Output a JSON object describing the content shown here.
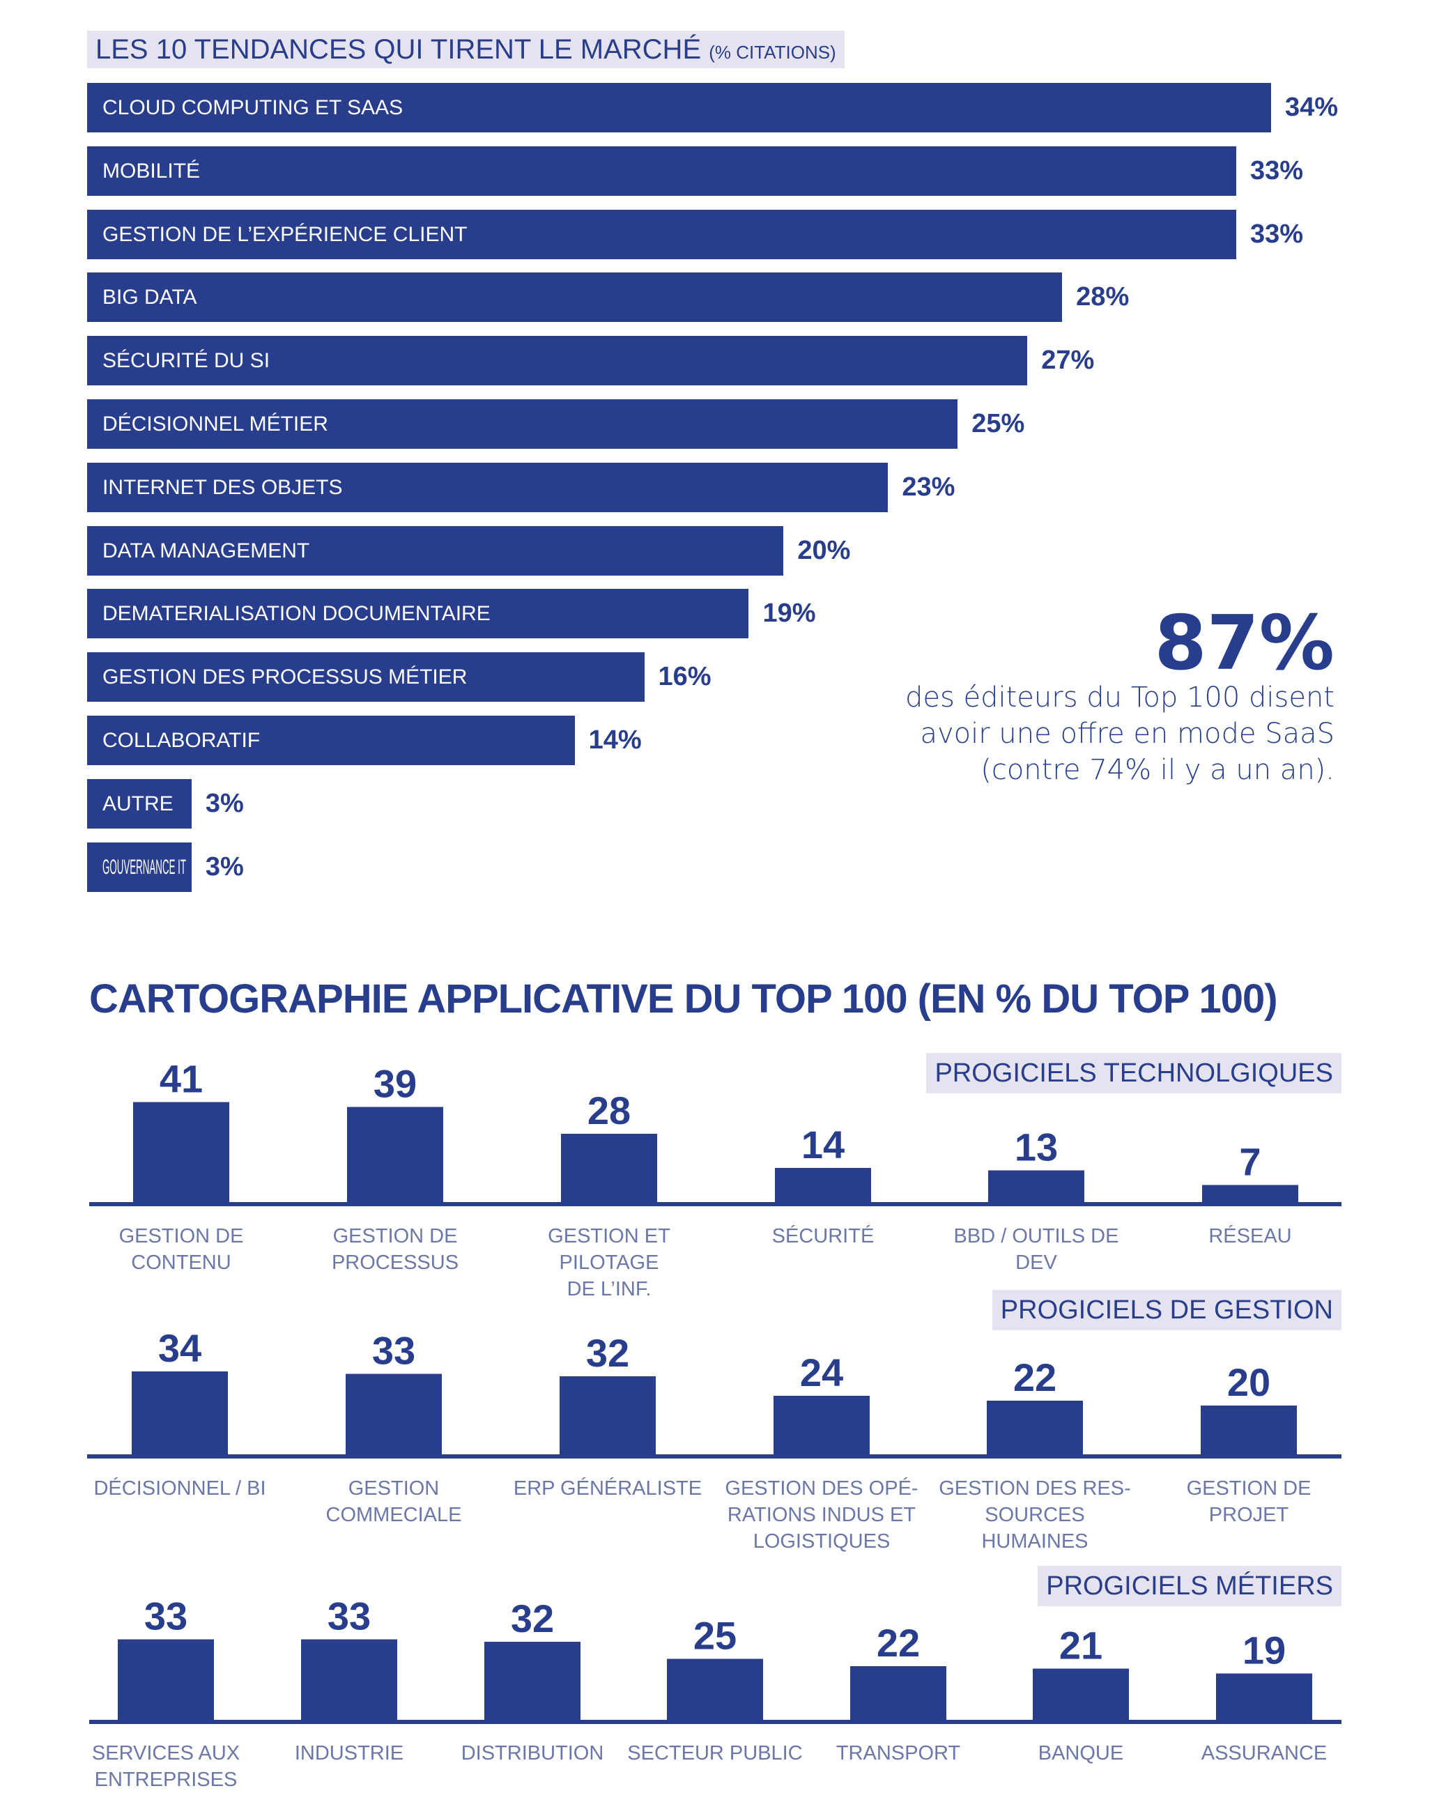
{
  "chart_data": [
    {
      "type": "bar",
      "orientation": "horizontal",
      "title": "LES 10 TENDANCES QUI TIRENT LE MARCHÉ",
      "title_suffix": "(% CITATIONS)",
      "categories": [
        "CLOUD COMPUTING ET SAAS",
        "MOBILITÉ",
        "GESTION DE L’EXPÉRIENCE CLIENT",
        "BIG DATA",
        "SÉCURITÉ DU SI",
        "DÉCISIONNEL MÉTIER",
        "INTERNET DES OBJETS",
        "DATA MANAGEMENT",
        "DEMATERIALISATION DOCUMENTAIRE",
        "GESTION DES PROCESSUS MÉTIER",
        "COLLABORATIF",
        "AUTRE",
        "GOUVERNANCE IT"
      ],
      "values": [
        34,
        33,
        33,
        28,
        27,
        25,
        23,
        20,
        19,
        16,
        14,
        3,
        3
      ],
      "value_labels": [
        "34%",
        "33%",
        "33%",
        "28%",
        "27%",
        "25%",
        "23%",
        "20%",
        "19%",
        "16%",
        "14%",
        "3%",
        "3%"
      ],
      "unit": "%",
      "color": "#283e8c"
    },
    {
      "type": "bar",
      "title": "CARTOGRAPHIE APPLICATIVE DU TOP 100 (EN % DU TOP 100)",
      "group": "PROGICIELS TECHNOLGIQUES",
      "categories": [
        "GESTION DE CONTENU",
        "GESTION DE PROCESSUS",
        "GESTION ET PILOTAGE DE L’INF.",
        "SÉCURITÉ",
        "BBD / OUTILS DE DEV",
        "RÉSEAU"
      ],
      "category_lines": [
        [
          "GESTION DE CONTENU"
        ],
        [
          "GESTION DE",
          "PROCESSUS"
        ],
        [
          "GESTION ET PILOTAGE",
          "DE L’INF."
        ],
        [
          "SÉCURITÉ"
        ],
        [
          "BBD / OUTILS DE DEV"
        ],
        [
          "RÉSEAU"
        ]
      ],
      "values": [
        41,
        39,
        28,
        14,
        13,
        7
      ],
      "color": "#283e8c"
    },
    {
      "type": "bar",
      "group": "PROGICIELS DE GESTION",
      "categories": [
        "DÉCISIONNEL / BI",
        "GESTION COMMECIALE",
        "ERP GÉNÉRALISTE",
        "GESTION DES OPÉRATIONS INDUS ET LOGISTIQUES",
        "GESTION DES RESSOURCES HUMAINES",
        "GESTION DE PROJET"
      ],
      "category_lines": [
        [
          "DÉCISIONNEL / BI"
        ],
        [
          "GESTION COMMECIALE"
        ],
        [
          "ERP GÉNÉRALISTE"
        ],
        [
          "GESTION DES OPÉ-",
          "RATIONS INDUS ET",
          "LOGISTIQUES"
        ],
        [
          "GESTION DES RES-",
          "SOURCES HUMAINES"
        ],
        [
          "GESTION DE PROJET"
        ]
      ],
      "values": [
        34,
        33,
        32,
        24,
        22,
        20
      ],
      "color": "#283e8c"
    },
    {
      "type": "bar",
      "group": "PROGICIELS MÉTIERS",
      "categories": [
        "SERVICES AUX ENTREPRISES",
        "INDUSTRIE",
        "DISTRIBUTION",
        "SECTEUR PUBLIC",
        "TRANSPORT",
        "BANQUE",
        "ASSURANCE"
      ],
      "category_lines": [
        [
          "SERVICES AUX",
          "ENTREPRISES"
        ],
        [
          "INDUSTRIE"
        ],
        [
          "DISTRIBUTION"
        ],
        [
          "SECTEUR PUBLIC"
        ],
        [
          "TRANSPORT"
        ],
        [
          "BANQUE"
        ],
        [
          "ASSURANCE"
        ]
      ],
      "values": [
        33,
        33,
        32,
        25,
        22,
        21,
        19
      ],
      "color": "#283e8c"
    }
  ],
  "callout": {
    "value": "87%",
    "text": "des éditeurs du Top 100 disent avoir une offre en mode SaaS (contre 74% il y a un an)."
  }
}
